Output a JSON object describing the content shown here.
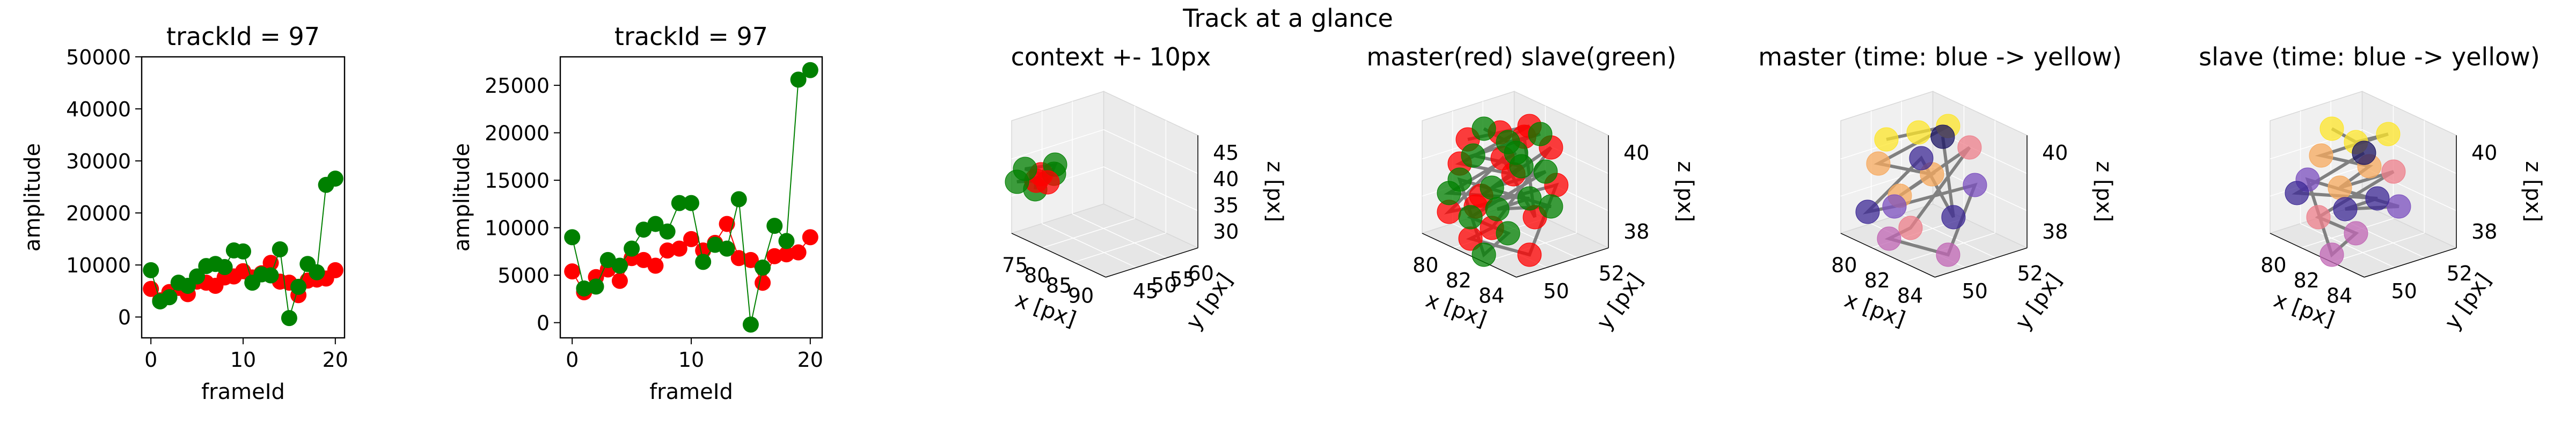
{
  "figure": {
    "suptitle": "Track at a glance"
  },
  "colors": {
    "master": "#ff0000",
    "slave": "#008000",
    "line_master": "#ff0000",
    "line_slave": "#008000",
    "traj3d": "#808080"
  },
  "chart_data": [
    {
      "type": "scatter",
      "title": "trackId = 97",
      "xlabel": "frameId",
      "ylabel": "amplitude",
      "xlim": [
        -1,
        21
      ],
      "ylim": [
        -4000,
        50000
      ],
      "xticks": [
        0,
        10,
        20
      ],
      "yticks": [
        0,
        10000,
        20000,
        30000,
        40000,
        50000
      ],
      "x": [
        0,
        1,
        2,
        3,
        4,
        5,
        6,
        7,
        8,
        9,
        10,
        11,
        12,
        13,
        14,
        15,
        16,
        17,
        18,
        19,
        20
      ],
      "series": [
        {
          "color": "red",
          "values": [
            5400,
            3200,
            4800,
            5600,
            4400,
            6800,
            6600,
            6000,
            7600,
            7800,
            8800,
            7600,
            8400,
            10400,
            6800,
            6600,
            4200,
            7000,
            7200,
            7400,
            9000
          ]
        },
        {
          "color": "green",
          "values": [
            9000,
            3000,
            3800,
            6600,
            6000,
            7800,
            9800,
            10200,
            9600,
            12800,
            12600,
            6600,
            8200,
            8000,
            13000,
            -200,
            5800,
            10200,
            8600,
            25400,
            26600
          ]
        }
      ]
    },
    {
      "type": "scatter",
      "title": "trackId = 97",
      "xlabel": "frameId",
      "ylabel": "amplitude",
      "xlim": [
        -1,
        21
      ],
      "ylim": [
        -1600,
        28000
      ],
      "xticks": [
        0,
        10,
        20
      ],
      "yticks": [
        0,
        5000,
        10000,
        15000,
        20000,
        25000
      ],
      "x": [
        0,
        1,
        2,
        3,
        4,
        5,
        6,
        7,
        8,
        9,
        10,
        11,
        12,
        13,
        14,
        15,
        16,
        17,
        18,
        19,
        20
      ],
      "series": [
        {
          "color": "red",
          "values": [
            5400,
            3200,
            4800,
            5600,
            4400,
            6800,
            6600,
            6000,
            7600,
            7800,
            8800,
            7600,
            8400,
            10400,
            6800,
            6600,
            4200,
            7000,
            7200,
            7400,
            9000
          ]
        },
        {
          "color": "green",
          "values": [
            9000,
            3600,
            3800,
            6600,
            6000,
            7800,
            9800,
            10400,
            9600,
            12600,
            12600,
            6400,
            8200,
            7800,
            13000,
            -200,
            5800,
            10200,
            8600,
            25600,
            26600
          ]
        }
      ]
    },
    {
      "type": "scatter3d",
      "title": "context +- 10px",
      "xlabel": "x [px]",
      "ylabel": "y [px]",
      "zlabel": "z [px]",
      "xticks": [
        "75",
        "80",
        "85",
        "90"
      ],
      "yticks": [
        "45",
        "50",
        "55",
        "60"
      ],
      "zticks": [
        "30",
        "35",
        "40",
        "45"
      ]
    },
    {
      "type": "scatter3d",
      "title": "master(red) slave(green)",
      "xlabel": "x [px]",
      "ylabel": "y [px]",
      "zlabel": "z [px]",
      "xticks": [
        "80",
        "82",
        "84"
      ],
      "yticks": [
        "50",
        "52"
      ],
      "zticks": [
        "38",
        "40"
      ]
    },
    {
      "type": "scatter3d",
      "title": "master (time: blue -> yellow)",
      "xlabel": "x [px]",
      "ylabel": "y [px]",
      "zlabel": "z [px]",
      "xticks": [
        "80",
        "82",
        "84"
      ],
      "yticks": [
        "50",
        "52"
      ],
      "zticks": [
        "38",
        "40"
      ]
    },
    {
      "type": "scatter3d",
      "title": "slave (time: blue -> yellow)",
      "xlabel": "x [px]",
      "ylabel": "y [px]",
      "zlabel": "z [px]",
      "xticks": [
        "80",
        "82",
        "84"
      ],
      "yticks": [
        "50",
        "52"
      ],
      "zticks": [
        "38",
        "40"
      ]
    }
  ]
}
